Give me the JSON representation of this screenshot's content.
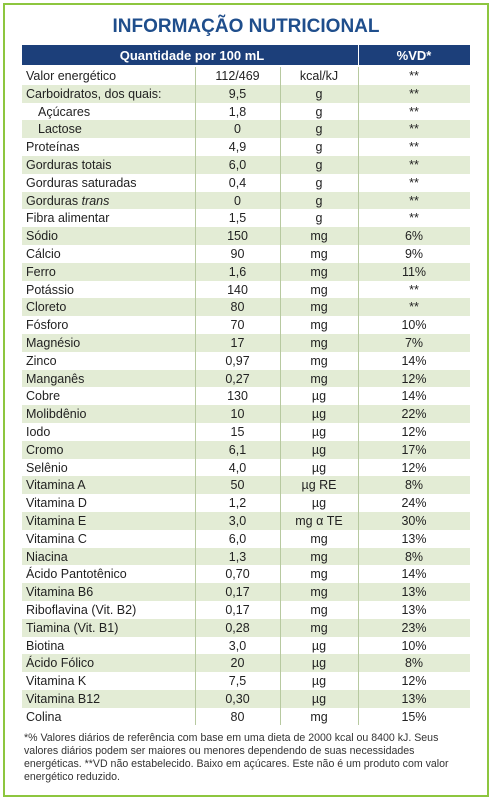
{
  "title": "INFORMAÇÃO NUTRICIONAL",
  "header": {
    "amount": "Quantidade por 100 mL",
    "vd": "%VD*"
  },
  "rows": [
    {
      "name": "Valor energético",
      "amount": "112/469",
      "unit": "kcal/kJ",
      "vd": "**"
    },
    {
      "name": "Carboidratos, dos quais:",
      "amount": "9,5",
      "unit": "g",
      "vd": "**"
    },
    {
      "name": "Açúcares",
      "sub": true,
      "amount": "1,8",
      "unit": "g",
      "vd": "**"
    },
    {
      "name": "Lactose",
      "sub": true,
      "amount": "0",
      "unit": "g",
      "vd": "**"
    },
    {
      "name": "Proteínas",
      "amount": "4,9",
      "unit": "g",
      "vd": "**"
    },
    {
      "name": "Gorduras totais",
      "amount": "6,0",
      "unit": "g",
      "vd": "**"
    },
    {
      "name": "Gorduras saturadas",
      "amount": "0,4",
      "unit": "g",
      "vd": "**"
    },
    {
      "name": "Gorduras",
      "name_italic": "trans",
      "amount": "0",
      "unit": "g",
      "vd": "**"
    },
    {
      "name": "Fibra alimentar",
      "amount": "1,5",
      "unit": "g",
      "vd": "**"
    },
    {
      "name": "Sódio",
      "amount": "150",
      "unit": "mg",
      "vd": "6%"
    },
    {
      "name": "Cálcio",
      "amount": "90",
      "unit": "mg",
      "vd": "9%"
    },
    {
      "name": "Ferro",
      "amount": "1,6",
      "unit": "mg",
      "vd": "11%"
    },
    {
      "name": "Potássio",
      "amount": "140",
      "unit": "mg",
      "vd": "**"
    },
    {
      "name": "Cloreto",
      "amount": "80",
      "unit": "mg",
      "vd": "**"
    },
    {
      "name": "Fósforo",
      "amount": "70",
      "unit": "mg",
      "vd": "10%"
    },
    {
      "name": "Magnésio",
      "amount": "17",
      "unit": "mg",
      "vd": "7%"
    },
    {
      "name": "Zinco",
      "amount": "0,97",
      "unit": "mg",
      "vd": "14%"
    },
    {
      "name": "Manganês",
      "amount": "0,27",
      "unit": "mg",
      "vd": "12%"
    },
    {
      "name": "Cobre",
      "amount": "130",
      "unit": "µg",
      "vd": "14%"
    },
    {
      "name": "Molibdênio",
      "amount": "10",
      "unit": "µg",
      "vd": "22%"
    },
    {
      "name": "Iodo",
      "amount": "15",
      "unit": "µg",
      "vd": "12%"
    },
    {
      "name": "Cromo",
      "amount": "6,1",
      "unit": "µg",
      "vd": "17%"
    },
    {
      "name": "Selênio",
      "amount": "4,0",
      "unit": "µg",
      "vd": "12%"
    },
    {
      "name": "Vitamina A",
      "amount": "50",
      "unit": "µg RE",
      "vd": "8%"
    },
    {
      "name": "Vitamina D",
      "amount": "1,2",
      "unit": "µg",
      "vd": "24%"
    },
    {
      "name": "Vitamina E",
      "amount": "3,0",
      "unit": "mg α TE",
      "vd": "30%"
    },
    {
      "name": "Vitamina C",
      "amount": "6,0",
      "unit": "mg",
      "vd": "13%"
    },
    {
      "name": "Niacina",
      "amount": "1,3",
      "unit": "mg",
      "vd": "8%"
    },
    {
      "name": "Ácido Pantotênico",
      "amount": "0,70",
      "unit": "mg",
      "vd": "14%"
    },
    {
      "name": "Vitamina B6",
      "amount": "0,17",
      "unit": "mg",
      "vd": "13%"
    },
    {
      "name": "Riboflavina (Vit. B2)",
      "amount": "0,17",
      "unit": "mg",
      "vd": "13%"
    },
    {
      "name": "Tiamina (Vit. B1)",
      "amount": "0,28",
      "unit": "mg",
      "vd": "23%"
    },
    {
      "name": "Biotina",
      "amount": "3,0",
      "unit": "µg",
      "vd": "10%"
    },
    {
      "name": "Ácido Fólico",
      "amount": "20",
      "unit": "µg",
      "vd": "8%"
    },
    {
      "name": "Vitamina K",
      "amount": "7,5",
      "unit": "µg",
      "vd": "12%"
    },
    {
      "name": "Vitamina B12",
      "amount": "0,30",
      "unit": "µg",
      "vd": "13%"
    },
    {
      "name": "Colina",
      "amount": "80",
      "unit": "mg",
      "vd": "15%"
    }
  ],
  "footnote": "*% Valores diários de referência com base em uma dieta de 2000 kcal ou 8400 kJ. Seus valores diários podem ser maiores ou menores dependendo de suas necessidades energéticas. **VD não estabelecido. Baixo em açúcares. Este não é um produto com valor energético reduzido."
}
